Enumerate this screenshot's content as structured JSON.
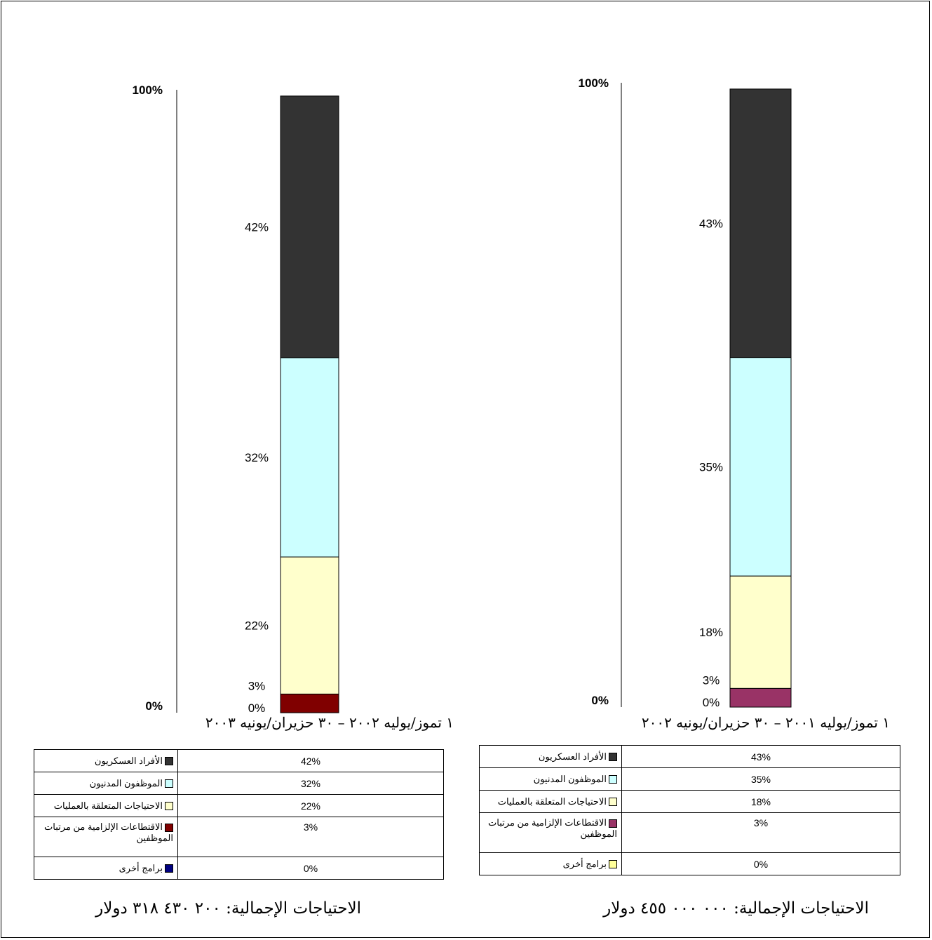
{
  "chart_data": [
    {
      "type": "bar",
      "stacked": true,
      "period": "١ تموز/يوليه ٢٠٠٢ – ٣٠ حزيران/يونيه ٢٠٠٣",
      "y_ticks": [
        "100%",
        "0%"
      ],
      "ylim": [
        0,
        100
      ],
      "series": [
        {
          "name": "الأفراد العسكريون",
          "value": 42,
          "label": "42%",
          "color": "#333333"
        },
        {
          "name": "الموظفون المدنيون",
          "value": 32,
          "label": "32%",
          "color": "#ccffff"
        },
        {
          "name": "الاحتياجات المتعلقة بالعمليات",
          "value": 22,
          "label": "22%",
          "color": "#ffffcc"
        },
        {
          "name": "الاقتطاعات الإلزامية من مرتبات الموظفين",
          "value": 3,
          "label": "3%",
          "color": "#800000"
        },
        {
          "name": "برامج أخرى",
          "value": 0,
          "label": "0%",
          "color": "#000080"
        }
      ],
      "total": "الاحتياجات الإجمالية: ٢٠٠ ٤٣٠ ٣١٨ دولار"
    },
    {
      "type": "bar",
      "stacked": true,
      "period": "١ تموز/يوليه ٢٠٠١ – ٣٠ حزيران/يونيه ٢٠٠٢",
      "y_ticks": [
        "100%",
        "0%"
      ],
      "ylim": [
        0,
        100
      ],
      "series": [
        {
          "name": "الأفراد العسكريون",
          "value": 43,
          "label": "43%",
          "color": "#333333"
        },
        {
          "name": "الموظفون المدنيون",
          "value": 35,
          "label": "35%",
          "color": "#ccffff"
        },
        {
          "name": "الاحتياجات المتعلقة بالعمليات",
          "value": 18,
          "label": "18%",
          "color": "#ffffcc"
        },
        {
          "name": "الاقتطاعات الإلزامية من مرتبات الموظفين",
          "value": 3,
          "label": "3%",
          "color": "#993366"
        },
        {
          "name": "برامج أخرى",
          "value": 0,
          "label": "0%",
          "color": "#ffff99"
        }
      ],
      "total": "الاحتياجات الإجمالية: ٠٠٠ ٠٠٠ ٤٥٥ دولار"
    }
  ]
}
